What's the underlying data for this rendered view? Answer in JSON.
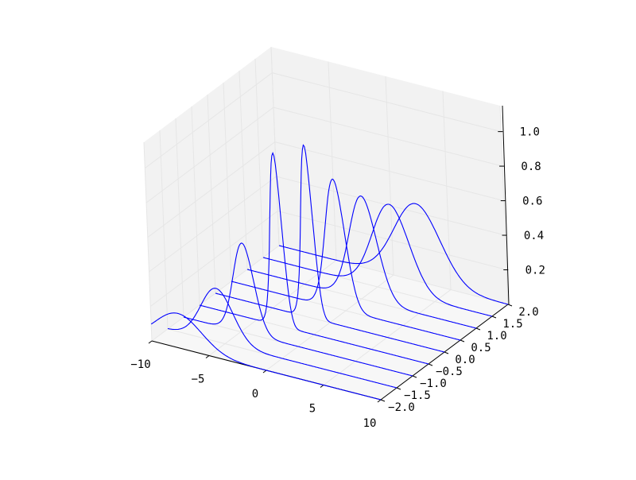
{
  "chart_data": {
    "type": "line",
    "projection": "3d",
    "title": "",
    "xlabel": "",
    "ylabel": "",
    "zlabel": "",
    "xlim": [
      -10,
      10
    ],
    "ylim": [
      -2,
      2
    ],
    "zlim": [
      0,
      1.15
    ],
    "grid": true,
    "legend": "none",
    "line_color": "#0000ff",
    "pane_color": "#f2f2f2",
    "grid_color": "#e6e6e6",
    "x_ticks": [
      -10,
      -5,
      0,
      5,
      10
    ],
    "x_tick_labels": [
      "−10",
      "−5",
      "0",
      "5",
      "10"
    ],
    "y_ticks": [
      -2,
      -1.5,
      -1,
      -0.5,
      0,
      0.5,
      1,
      1.5,
      2
    ],
    "y_tick_labels": [
      "−2.0",
      "−1.5",
      "−1.0",
      "−0.5",
      "0.0",
      "0.5",
      "1.0",
      "1.5",
      "2.0"
    ],
    "z_ticks": [
      0.2,
      0.4,
      0.6,
      0.8,
      1.0
    ],
    "z_tick_labels": [
      "0.2",
      "0.4",
      "0.6",
      "0.8",
      "1.0"
    ],
    "x_range": [
      -10,
      10
    ],
    "series": [
      {
        "y": -2.0,
        "peak_x": -7.6,
        "amplitude": 0.2,
        "sigma": 2.0
      },
      {
        "y": -1.5,
        "peak_x": -5.6,
        "amplitude": 0.31,
        "sigma": 1.4
      },
      {
        "y": -1.0,
        "peak_x": -4.6,
        "amplitude": 0.52,
        "sigma": 0.9
      },
      {
        "y": -0.5,
        "peak_x": -3.0,
        "amplitude": 1.0,
        "sigma": 0.5
      },
      {
        "y": 0.0,
        "peak_x": -1.7,
        "amplitude": 1.0,
        "sigma": 0.5
      },
      {
        "y": 0.5,
        "peak_x": -0.7,
        "amplitude": 0.75,
        "sigma": 0.85
      },
      {
        "y": 1.0,
        "peak_x": 0.3,
        "amplitude": 0.6,
        "sigma": 1.2
      },
      {
        "y": 1.5,
        "peak_x": 1.3,
        "amplitude": 0.5,
        "sigma": 1.6
      },
      {
        "y": 2.0,
        "peak_x": 2.2,
        "amplitude": 0.45,
        "sigma": 2.0
      }
    ]
  }
}
